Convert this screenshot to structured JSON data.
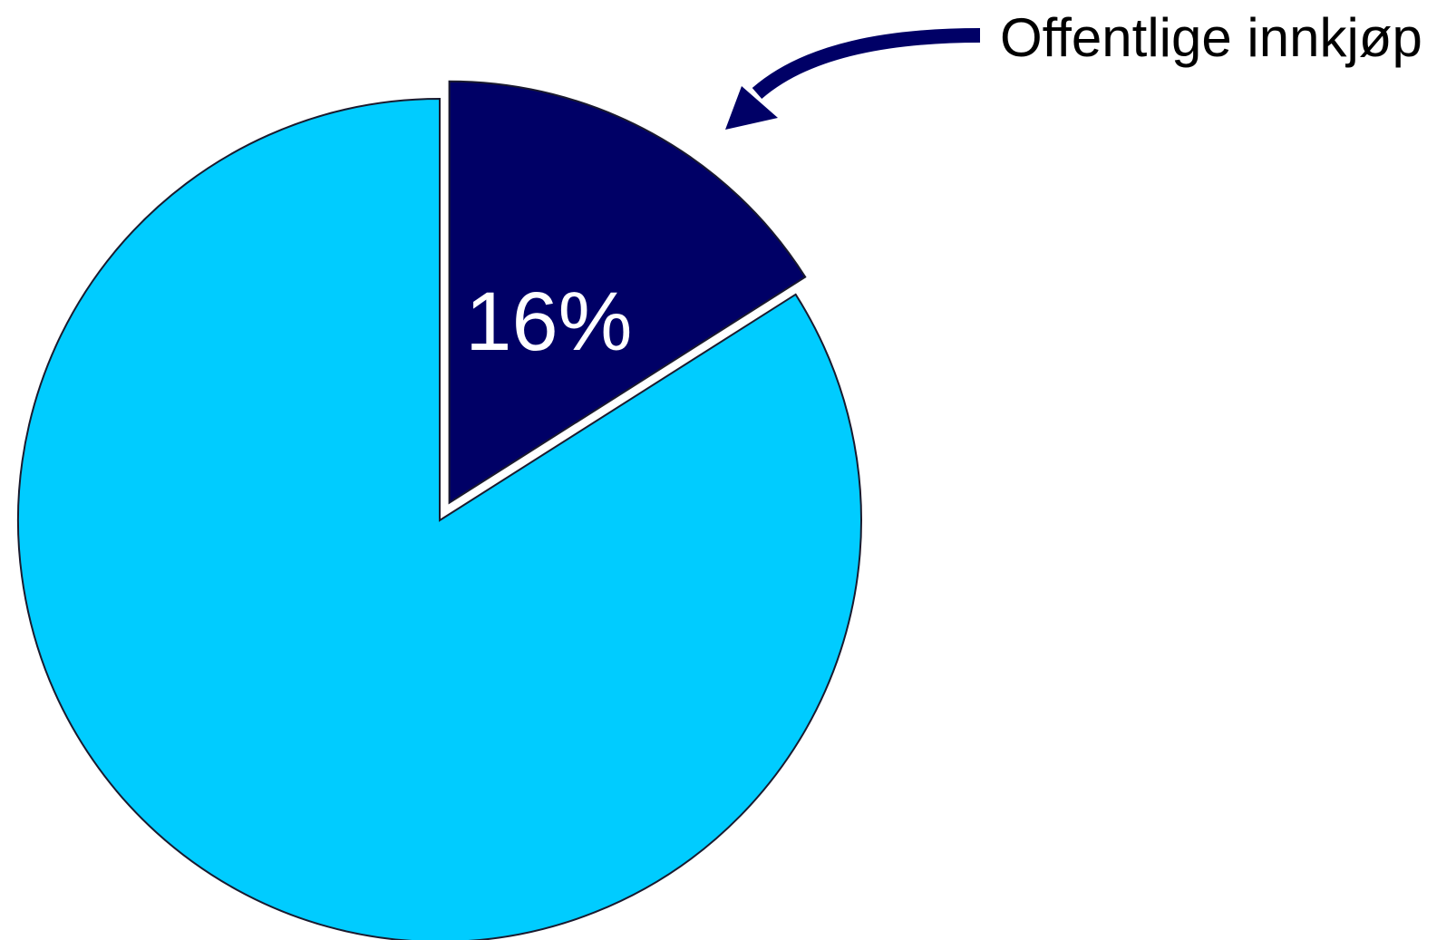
{
  "chart_data": {
    "type": "pie",
    "title": "",
    "start_angle_deg": 0,
    "direction": "clockwise",
    "slices": [
      {
        "label": "Offentlige innkjøp",
        "value": 16,
        "value_label": "16%",
        "color": "#000066",
        "exploded": true,
        "label_color": "#ffffff"
      },
      {
        "label": "",
        "value": 84,
        "value_label": "",
        "color": "#00ccff",
        "exploded": false
      }
    ],
    "annotations": [
      {
        "text": "Offentlige innkjøp",
        "target_slice": 0,
        "arrow_color": "#000066",
        "text_color": "#000000"
      }
    ],
    "legend": "none",
    "stroke_color": "#1a1a2e"
  }
}
